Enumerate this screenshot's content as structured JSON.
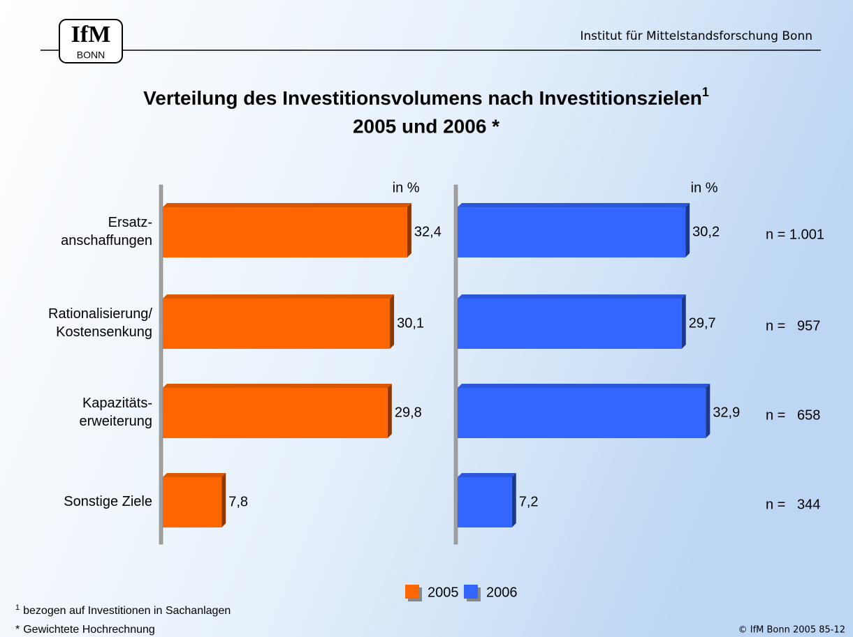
{
  "header": {
    "logo": "IfM",
    "logo_sub": "BONN",
    "institute": "Institut für Mittelstandsforschung Bonn"
  },
  "title": "Verteilung des Investitionsvolumens nach Investitionszielen",
  "title_note": "1",
  "subtitle": "2005 und 2006 *",
  "chart_data": [
    {
      "type": "bar",
      "orientation": "horizontal",
      "unit_label": "in %",
      "categories": [
        [
          "Ersatz-",
          "anschaffungen"
        ],
        [
          "Rationalisierung/",
          "Kostensenkung"
        ],
        [
          "Kapazitäts-",
          "erweiterung"
        ],
        [
          "Sonstige Ziele"
        ]
      ],
      "xlim": [
        0,
        35
      ],
      "series": [
        {
          "name": "2005",
          "color": "#ff6600",
          "values": [
            32.4,
            30.1,
            29.8,
            7.8
          ],
          "value_labels": [
            "32,4",
            "30,1",
            "29,8",
            "7,8"
          ]
        }
      ]
    },
    {
      "type": "bar",
      "orientation": "horizontal",
      "unit_label": "in %",
      "xlim": [
        0,
        35
      ],
      "series": [
        {
          "name": "2006",
          "color": "#3366ff",
          "values": [
            30.2,
            29.7,
            32.9,
            7.2
          ],
          "value_labels": [
            "30,2",
            "29,7",
            "32,9",
            "7,2"
          ]
        }
      ]
    }
  ],
  "sample_sizes": [
    "n = 1.001",
    "n =   957",
    "n =   658",
    "n =   344"
  ],
  "footnotes": [
    {
      "mark": "1",
      "text": "bezogen auf Investitionen in Sachanlagen"
    },
    {
      "mark": "*",
      "text": "Gewichtete Hochrechnung"
    }
  ],
  "copyright": "© IfM Bonn 2005  85-12"
}
